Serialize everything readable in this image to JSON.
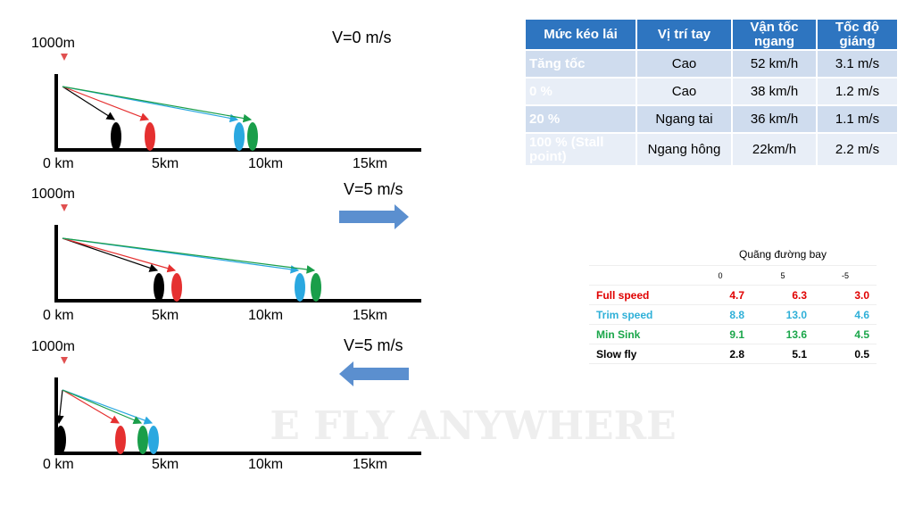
{
  "panels": [
    {
      "altitude": "1000m",
      "wind": "V=0 m/s",
      "axis_labels": [
        "0 km",
        "5km",
        "10km",
        "15km"
      ]
    },
    {
      "altitude": "1000m",
      "wind": "V=5 m/s",
      "axis_labels": [
        "0 km",
        "5km",
        "10km",
        "15km"
      ]
    },
    {
      "altitude": "1000m",
      "wind": "V=5 m/s",
      "axis_labels": [
        "0 km",
        "5km",
        "10km",
        "15km"
      ]
    }
  ],
  "table1": {
    "header": [
      "Mức kéo lái",
      "Vị trí tay",
      "Vận tốc ngang",
      "Tốc độ giáng"
    ],
    "rows": [
      [
        "Tăng tốc",
        "Cao",
        "52 km/h",
        "3.1 m/s"
      ],
      [
        "0 %",
        "Cao",
        "38 km/h",
        "1.2 m/s"
      ],
      [
        "20 %",
        "Ngang tai",
        "36 km/h",
        "1.1 m/s"
      ],
      [
        "100 % (Stall point)",
        "Ngang hông",
        "22km/h",
        "2.2 m/s"
      ]
    ]
  },
  "table2": {
    "title": "Quãng đường bay",
    "columns": [
      "0",
      "5",
      "-5"
    ],
    "rows": [
      {
        "label": "Full speed",
        "values": [
          "4.7",
          "6.3",
          "3.0"
        ]
      },
      {
        "label": "Trim speed",
        "values": [
          "8.8",
          "13.0",
          "4.6"
        ]
      },
      {
        "label": "Min Sink",
        "values": [
          "9.1",
          "13.6",
          "4.5"
        ]
      },
      {
        "label": "Slow fly",
        "values": [
          "2.8",
          "5.1",
          "0.5"
        ]
      }
    ]
  },
  "watermark": "E FLY ANYWHERE"
}
